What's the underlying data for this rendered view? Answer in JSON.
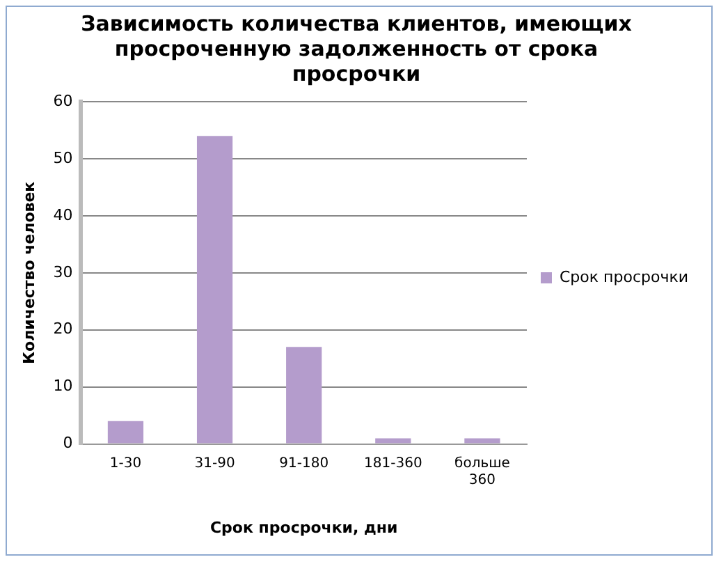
{
  "chart_data": {
    "type": "bar",
    "title": "Зависимость количества клиентов, имеющих просроченную задолженность от срока просрочки",
    "xlabel": "Срок просрочки, дни",
    "ylabel": "Количество человек",
    "categories": [
      "1-30",
      "31-90",
      "91-180",
      "181-360",
      "больше 360"
    ],
    "series": [
      {
        "name": "Срок просрочки",
        "color": "#b49ccc",
        "values": [
          4,
          54,
          17,
          1,
          1
        ]
      }
    ],
    "ylim": [
      0,
      60
    ],
    "yticks": [
      0,
      10,
      20,
      30,
      40,
      50,
      60
    ],
    "grid": "y",
    "legend": "right"
  }
}
